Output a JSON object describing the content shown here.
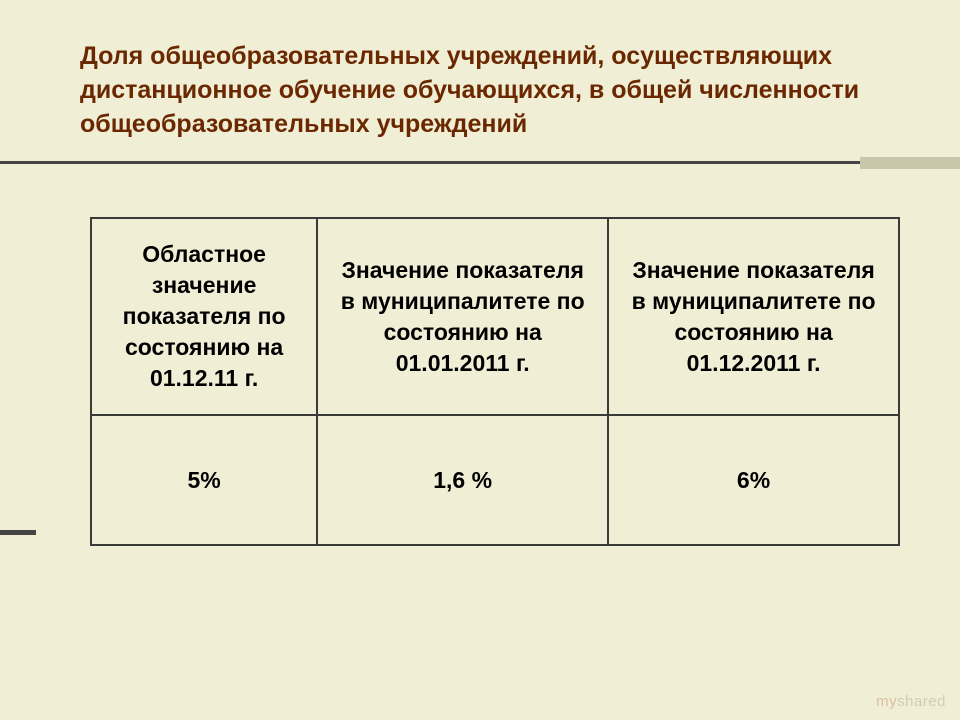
{
  "slide": {
    "title": "Доля общеобразовательных учреждений, осуществляющих дистанционное обучение обучающихся, в общей численности общеобразовательных учреждений",
    "title_color": "#6b2800",
    "background_color": "#f0efd6",
    "divider_color": "#444444",
    "accent_block_color": "#c9c7ab"
  },
  "table": {
    "type": "table",
    "border_color": "#3a3a3a",
    "header_fontsize": 23,
    "cell_fontsize": 23,
    "columns": [
      "Областное значение показателя по состоянию на 01.12.11 г.",
      "Значение показателя в муниципалитете по состоянию на 01.01.2011 г.",
      "Значение показателя в муниципалитете по состоянию на 01.12.2011 г."
    ],
    "column_widths_pct": [
      28,
      36,
      36
    ],
    "rows": [
      [
        "5%",
        "1,6 %",
        "6%"
      ]
    ]
  },
  "watermark": {
    "prefix": "my",
    "suffix": "shared"
  }
}
